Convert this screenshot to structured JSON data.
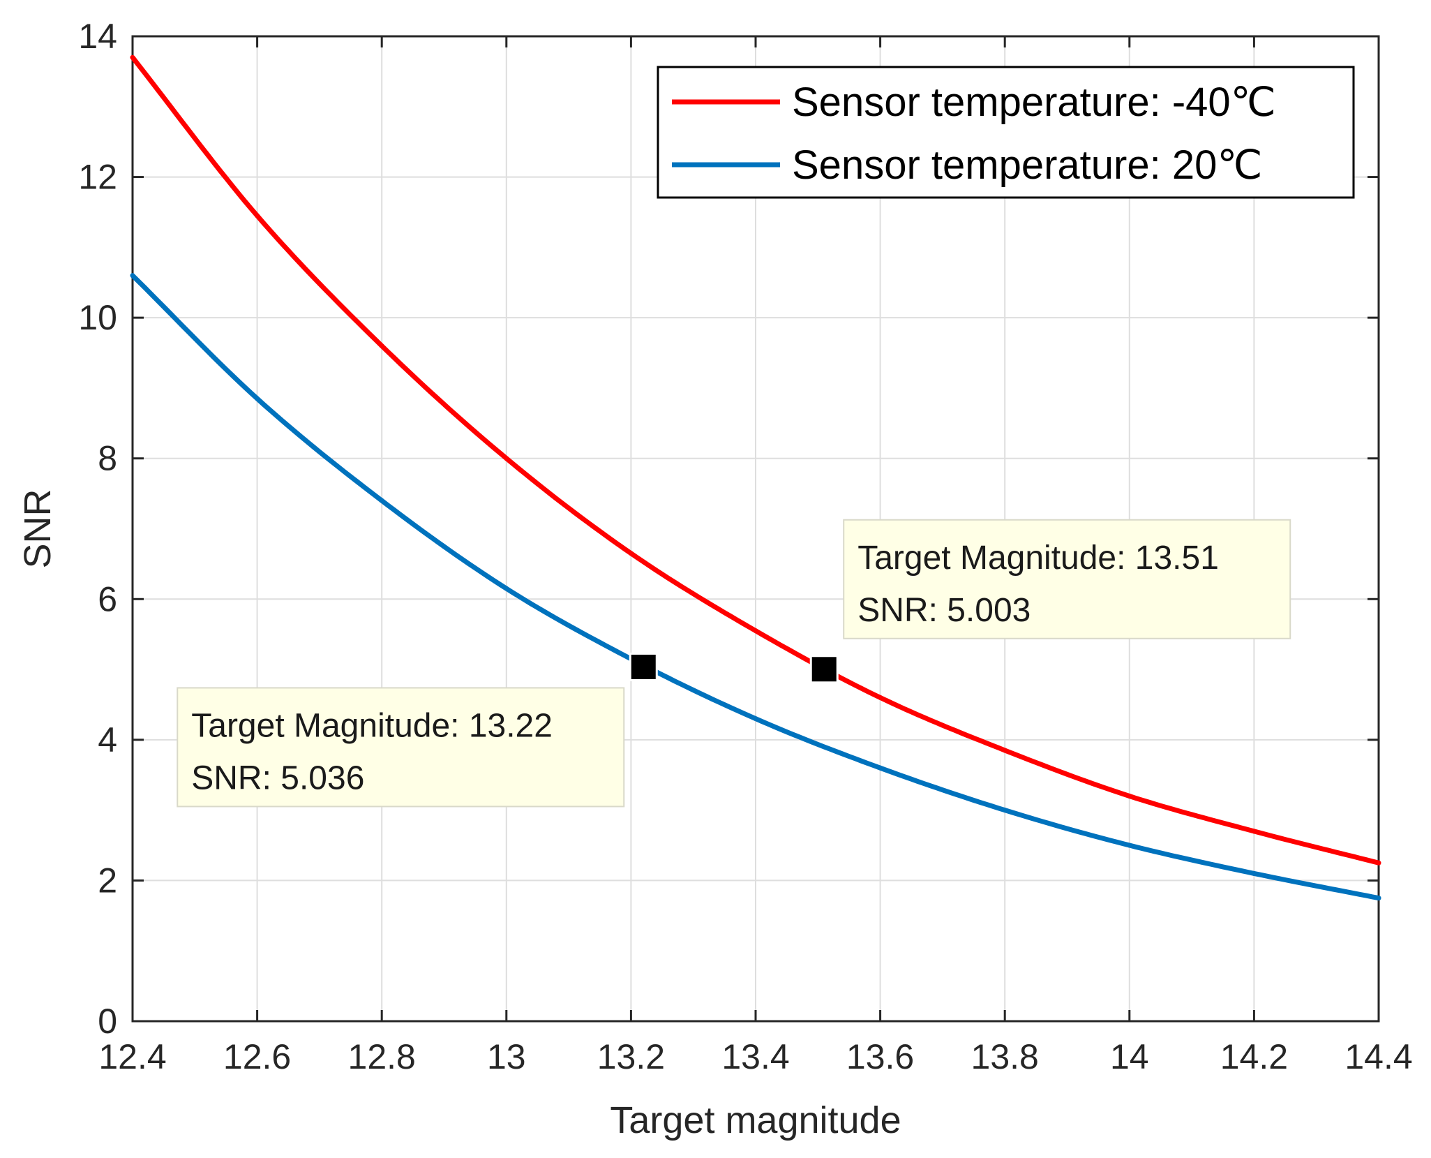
{
  "chart_data": {
    "type": "line",
    "title": "",
    "xlabel": "Target magnitude",
    "ylabel": "SNR",
    "xlim": [
      12.4,
      14.4
    ],
    "ylim": [
      0,
      14
    ],
    "grid": true,
    "legend_position": "top-right",
    "xticks": [
      "12.4",
      "12.6",
      "12.8",
      "13",
      "13.2",
      "13.4",
      "13.6",
      "13.8",
      "14",
      "14.2",
      "14.4"
    ],
    "yticks": [
      "0",
      "2",
      "4",
      "6",
      "8",
      "10",
      "12",
      "14"
    ],
    "x": [
      12.4,
      12.6,
      12.8,
      13.0,
      13.2,
      13.4,
      13.6,
      13.8,
      14.0,
      14.2,
      14.4
    ],
    "series": [
      {
        "name": "Sensor temperature: -40℃",
        "color": "#ff0000",
        "values": [
          13.7,
          11.45,
          9.6,
          8.0,
          6.65,
          5.55,
          4.6,
          3.85,
          3.2,
          2.7,
          2.25
        ]
      },
      {
        "name": "Sensor temperature: 20℃",
        "color": "#0072bd",
        "values": [
          10.6,
          8.85,
          7.4,
          6.15,
          5.15,
          4.3,
          3.6,
          3.0,
          2.5,
          2.1,
          1.75
        ]
      }
    ],
    "datatips": [
      {
        "series": 0,
        "x": 13.51,
        "y": 5.003,
        "line1": "Target Magnitude: 13.51",
        "line2": "SNR: 5.003",
        "placement": "upper-right"
      },
      {
        "series": 1,
        "x": 13.22,
        "y": 5.036,
        "line1": "Target Magnitude: 13.22",
        "line2": "SNR: 5.036",
        "placement": "lower-left"
      }
    ]
  }
}
